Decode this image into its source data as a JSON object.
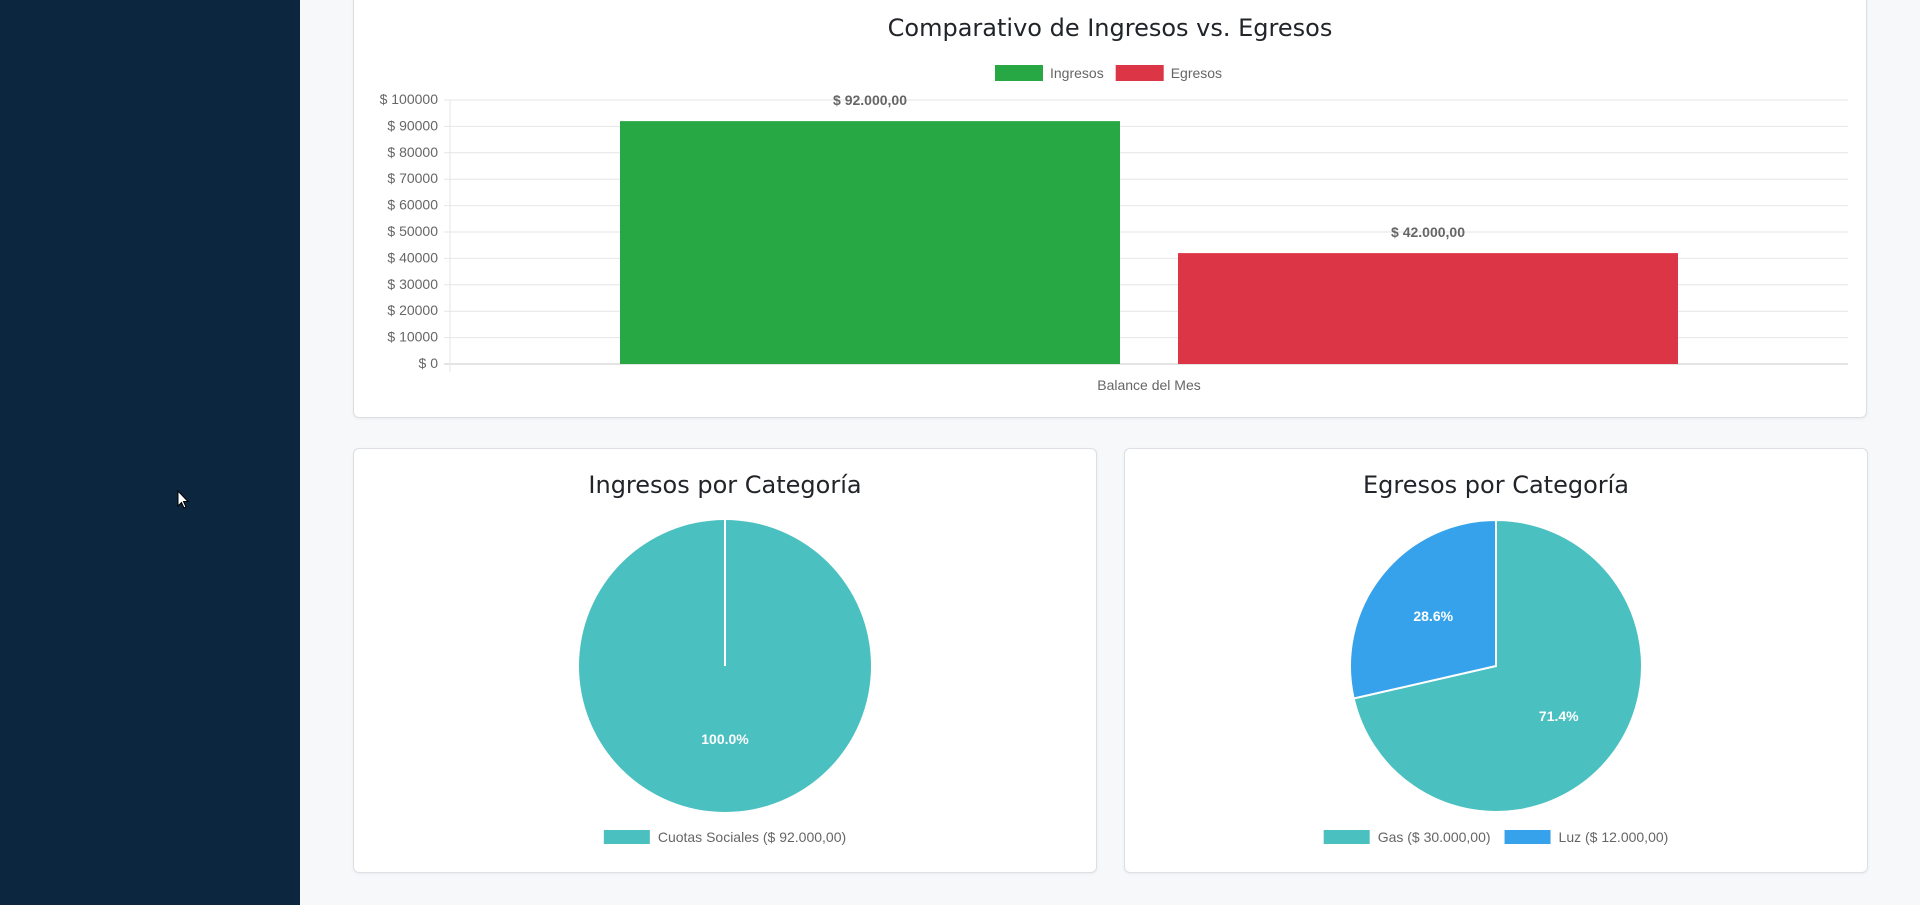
{
  "colors": {
    "ingresos": "#28a745",
    "egresos": "#dc3545",
    "teal": "#4bc0c0",
    "blue": "#36a2eb"
  },
  "bar_card": {
    "title": "Comparativo de Ingresos vs. Egresos"
  },
  "pie_ingresos_card": {
    "title": "Ingresos por Categoría"
  },
  "pie_egresos_card": {
    "title": "Egresos por Categoría"
  },
  "chart_data": [
    {
      "type": "bar",
      "title": "Comparativo de Ingresos vs. Egresos",
      "categories": [
        "Balance del Mes"
      ],
      "series": [
        {
          "name": "Ingresos",
          "values": [
            92000
          ],
          "data_label": "$ 92.000,00",
          "color": "#28a745"
        },
        {
          "name": "Egresos",
          "values": [
            42000
          ],
          "data_label": "$ 42.000,00",
          "color": "#dc3545"
        }
      ],
      "ylim": [
        0,
        100000
      ],
      "yticks": [
        0,
        10000,
        20000,
        30000,
        40000,
        50000,
        60000,
        70000,
        80000,
        90000,
        100000
      ],
      "ytick_labels": [
        "$ 0",
        "$ 10000",
        "$ 20000",
        "$ 30000",
        "$ 40000",
        "$ 50000",
        "$ 60000",
        "$ 70000",
        "$ 80000",
        "$ 90000",
        "$ 100000"
      ],
      "legend": "top",
      "grid": true
    },
    {
      "type": "pie",
      "title": "Ingresos por Categoría",
      "slices": [
        {
          "label": "Cuotas Sociales ($ 92.000,00)",
          "value": 92000,
          "percent_label": "100.0%",
          "color": "#4bc0c0"
        }
      ],
      "legend": "bottom"
    },
    {
      "type": "pie",
      "title": "Egresos por Categoría",
      "slices": [
        {
          "label": "Gas ($ 30.000,00)",
          "value": 30000,
          "percent_label": "71.4%",
          "color": "#4bc0c0"
        },
        {
          "label": "Luz ($ 12.000,00)",
          "value": 12000,
          "percent_label": "28.6%",
          "color": "#36a2eb"
        }
      ],
      "legend": "bottom"
    }
  ]
}
